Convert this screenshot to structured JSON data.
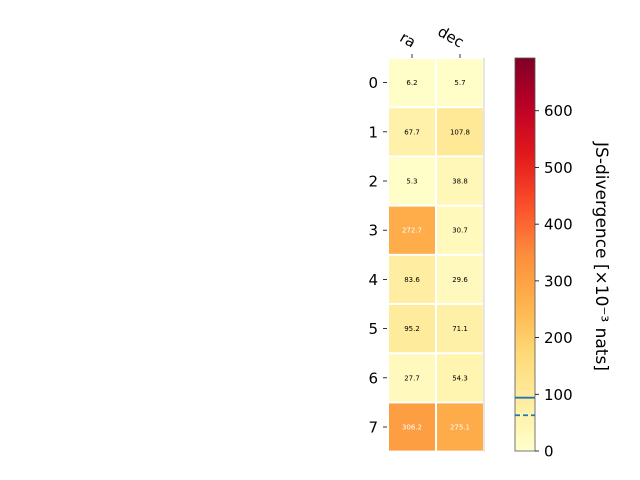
{
  "chart_data": {
    "type": "heatmap",
    "columns": [
      "ra",
      "dec"
    ],
    "rows": [
      "0",
      "1",
      "2",
      "3",
      "4",
      "5",
      "6",
      "7"
    ],
    "values": [
      [
        6.2,
        5.7
      ],
      [
        67.7,
        107.8
      ],
      [
        5.3,
        38.8
      ],
      [
        272.7,
        30.7
      ],
      [
        83.6,
        29.6
      ],
      [
        95.2,
        71.1
      ],
      [
        27.7,
        54.3
      ],
      [
        306.2,
        275.1
      ]
    ],
    "cell_labels": [
      [
        "6.2",
        "5.7"
      ],
      [
        "67.7",
        "107.8"
      ],
      [
        "5.3",
        "38.8"
      ],
      [
        "272.7",
        "30.7"
      ],
      [
        "83.6",
        "29.6"
      ],
      [
        "95.2",
        "71.1"
      ],
      [
        "27.7",
        "54.3"
      ],
      [
        "306.2",
        "275.1"
      ]
    ],
    "colormap": "YlOrRd",
    "colorbar": {
      "label": "JS-divergence [×10⁻³ nats]",
      "range": [
        0,
        693
      ],
      "ticks": [
        "0",
        "100",
        "200",
        "300",
        "400",
        "500",
        "600"
      ],
      "tick_values": [
        0,
        100,
        200,
        300,
        400,
        500,
        600
      ],
      "reference_lines": [
        {
          "value": 94,
          "style": "solid",
          "color": "#1f77b4"
        },
        {
          "value": 63,
          "style": "dashed",
          "color": "#1f77b4"
        }
      ]
    }
  }
}
